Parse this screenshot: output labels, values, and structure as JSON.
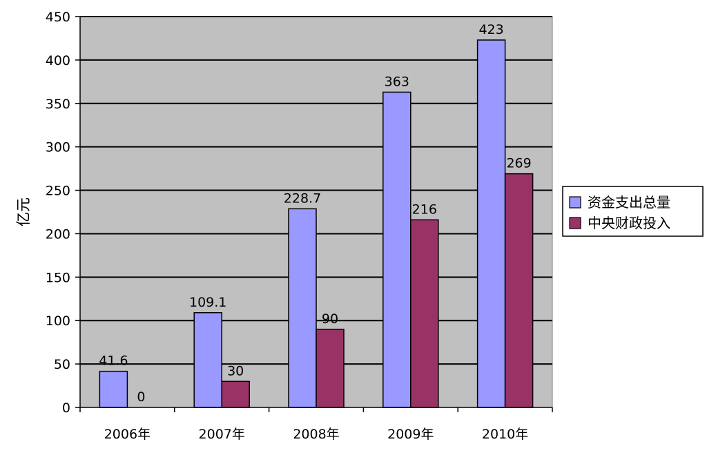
{
  "chart_data": {
    "type": "bar",
    "title": "",
    "xlabel": "",
    "ylabel": "亿元",
    "ylim": [
      0,
      450
    ],
    "yticks": [
      0,
      50,
      100,
      150,
      200,
      250,
      300,
      350,
      400,
      450
    ],
    "grid": true,
    "legend_position": "right",
    "categories": [
      "2006年",
      "2007年",
      "2008年",
      "2009年",
      "2010年"
    ],
    "series": [
      {
        "name": "资金支出总量",
        "color": "#9999ff",
        "values": [
          41.6,
          109.1,
          228.7,
          363,
          423
        ],
        "labels": [
          "41.6",
          "109.1",
          "228.7",
          "363",
          "423"
        ]
      },
      {
        "name": "中央财政投入",
        "color": "#993366",
        "values": [
          0,
          30,
          90,
          216,
          269
        ],
        "labels": [
          "0",
          "30",
          "90",
          "216",
          "269"
        ]
      }
    ],
    "colors": {
      "plot_background": "#c0c0c0",
      "gridline": "#000000"
    }
  }
}
